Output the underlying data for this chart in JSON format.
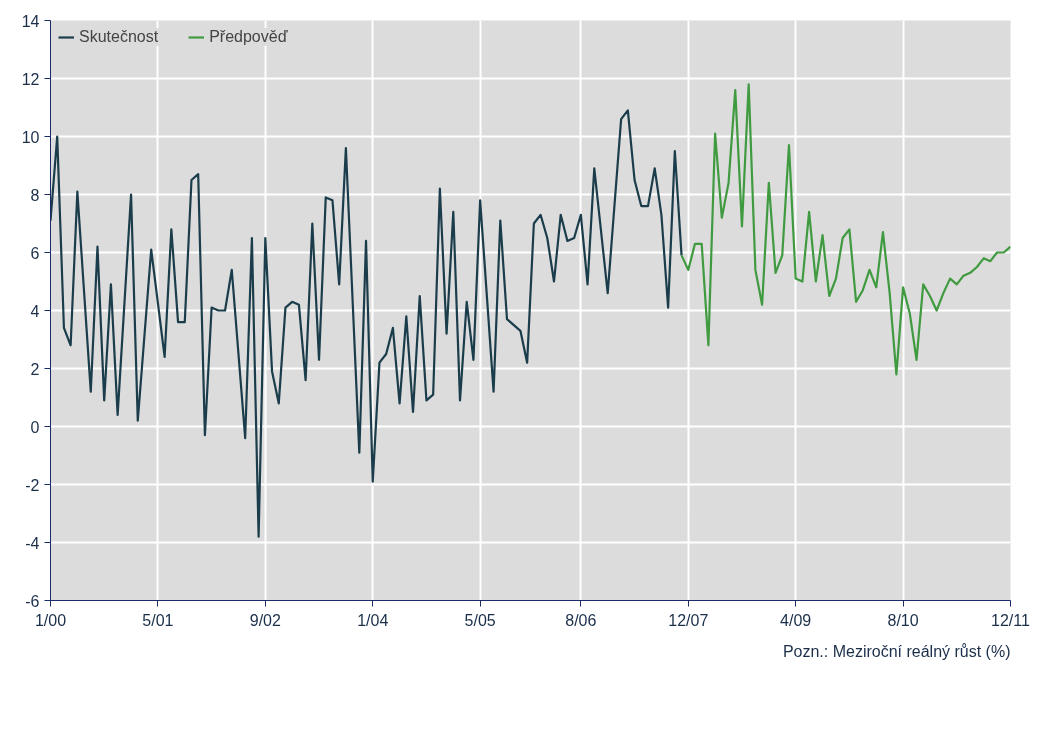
{
  "chart_data": {
    "type": "line",
    "xlim": [
      "2000-01",
      "2011-12"
    ],
    "xticks": [
      {
        "value": "2000-01",
        "label": "1/00"
      },
      {
        "value": "2001-05",
        "label": "5/01"
      },
      {
        "value": "2002-09",
        "label": "9/02"
      },
      {
        "value": "2004-01",
        "label": "1/04"
      },
      {
        "value": "2005-05",
        "label": "5/05"
      },
      {
        "value": "2006-08",
        "label": "8/06"
      },
      {
        "value": "2007-12",
        "label": "12/07"
      },
      {
        "value": "2009-04",
        "label": "4/09"
      },
      {
        "value": "2010-08",
        "label": "8/10"
      },
      {
        "value": "2011-12",
        "label": "12/11"
      }
    ],
    "ylim": [
      -6,
      14
    ],
    "yticks": [
      -6,
      -4,
      -2,
      0,
      2,
      4,
      6,
      8,
      10,
      12,
      14
    ],
    "grid": true,
    "legend": "top left",
    "marker": "none",
    "line_style": "solid",
    "annotations": [
      "Pozn.: Meziroční reálný růst (%)"
    ],
    "series": [
      {
        "name": "Skutečnost",
        "color": "#1b3d4b",
        "x": [
          "2000-01",
          "2000-02",
          "2000-03",
          "2000-04",
          "2000-05",
          "2000-07",
          "2000-08",
          "2000-09",
          "2000-10",
          "2000-11",
          "2001-01",
          "2001-02",
          "2001-04",
          "2001-06",
          "2001-07",
          "2001-08",
          "2001-09",
          "2001-10",
          "2001-11",
          "2001-12",
          "2002-01",
          "2002-02",
          "2002-03",
          "2002-04",
          "2002-06",
          "2002-07",
          "2002-08",
          "2002-09",
          "2002-10",
          "2002-11",
          "2002-12",
          "2003-01",
          "2003-02",
          "2003-03",
          "2003-04",
          "2003-05",
          "2003-06",
          "2003-07",
          "2003-08",
          "2003-09",
          "2003-11",
          "2003-12",
          "2004-01",
          "2004-02",
          "2004-03",
          "2004-04",
          "2004-05",
          "2004-06",
          "2004-07",
          "2004-08",
          "2004-09",
          "2004-10",
          "2004-11",
          "2004-12",
          "2005-01",
          "2005-02",
          "2005-03",
          "2005-04",
          "2005-05",
          "2005-07",
          "2005-08",
          "2005-09",
          "2005-11",
          "2005-12",
          "2006-01",
          "2006-02",
          "2006-03",
          "2006-04",
          "2006-05",
          "2006-06",
          "2006-07",
          "2006-08",
          "2006-09",
          "2006-10",
          "2006-12",
          "2007-02",
          "2007-03",
          "2007-04",
          "2007-05",
          "2007-06",
          "2007-07",
          "2007-08",
          "2007-09",
          "2007-10",
          "2007-11"
        ],
        "values": [
          7.1,
          10.0,
          3.4,
          2.8,
          8.1,
          1.2,
          6.2,
          0.9,
          4.9,
          0.4,
          8.0,
          0.2,
          6.1,
          2.4,
          6.8,
          3.6,
          3.6,
          8.5,
          8.7,
          -0.3,
          4.1,
          4.0,
          4.0,
          5.4,
          -0.4,
          6.5,
          -3.8,
          6.5,
          1.9,
          0.8,
          4.1,
          4.3,
          4.2,
          1.6,
          7.0,
          2.3,
          7.9,
          7.8,
          4.9,
          9.6,
          -0.9,
          6.4,
          -1.9,
          2.2,
          2.5,
          3.4,
          0.8,
          3.8,
          0.5,
          4.5,
          0.9,
          1.1,
          8.2,
          3.2,
          7.4,
          0.9,
          4.3,
          2.3,
          7.8,
          1.2,
          7.1,
          3.7,
          3.3,
          2.2,
          7.0,
          7.3,
          6.5,
          5.0,
          7.3,
          6.4,
          6.5,
          7.3,
          4.9,
          8.9,
          4.6,
          10.6,
          10.9,
          8.5,
          7.6,
          7.6,
          8.9,
          7.3,
          4.1,
          9.5,
          5.9
        ]
      },
      {
        "name": "Předpověď",
        "color": "#3f9a40",
        "x": [
          "2007-11",
          "2007-12",
          "2008-01",
          "2008-02",
          "2008-03",
          "2008-04",
          "2008-05",
          "2008-06",
          "2008-07",
          "2008-08",
          "2008-09",
          "2008-10",
          "2008-11",
          "2008-12",
          "2009-01",
          "2009-02",
          "2009-03",
          "2009-04",
          "2009-05",
          "2009-06",
          "2009-07",
          "2009-08",
          "2009-09",
          "2009-10",
          "2009-11",
          "2009-12",
          "2010-01",
          "2010-02",
          "2010-03",
          "2010-04",
          "2010-05",
          "2010-06",
          "2010-07",
          "2010-08",
          "2010-09",
          "2010-10",
          "2010-11",
          "2010-12",
          "2011-01",
          "2011-02",
          "2011-03",
          "2011-04",
          "2011-05",
          "2011-06",
          "2011-07",
          "2011-08",
          "2011-09",
          "2011-10",
          "2011-11",
          "2011-12"
        ],
        "values": [
          5.9,
          5.4,
          6.3,
          6.3,
          2.8,
          10.1,
          7.2,
          8.4,
          11.6,
          6.9,
          11.8,
          5.4,
          4.2,
          8.4,
          5.3,
          5.9,
          9.7,
          5.1,
          5.0,
          7.4,
          5.0,
          6.6,
          4.5,
          5.1,
          6.5,
          6.8,
          4.3,
          4.7,
          5.4,
          4.8,
          6.7,
          4.6,
          1.8,
          4.8,
          3.9,
          2.3,
          4.9,
          4.5,
          4.0,
          4.6,
          5.1,
          4.9,
          5.2,
          5.3,
          5.5,
          5.8,
          5.7,
          6.0,
          6.0,
          6.2
        ]
      }
    ]
  }
}
